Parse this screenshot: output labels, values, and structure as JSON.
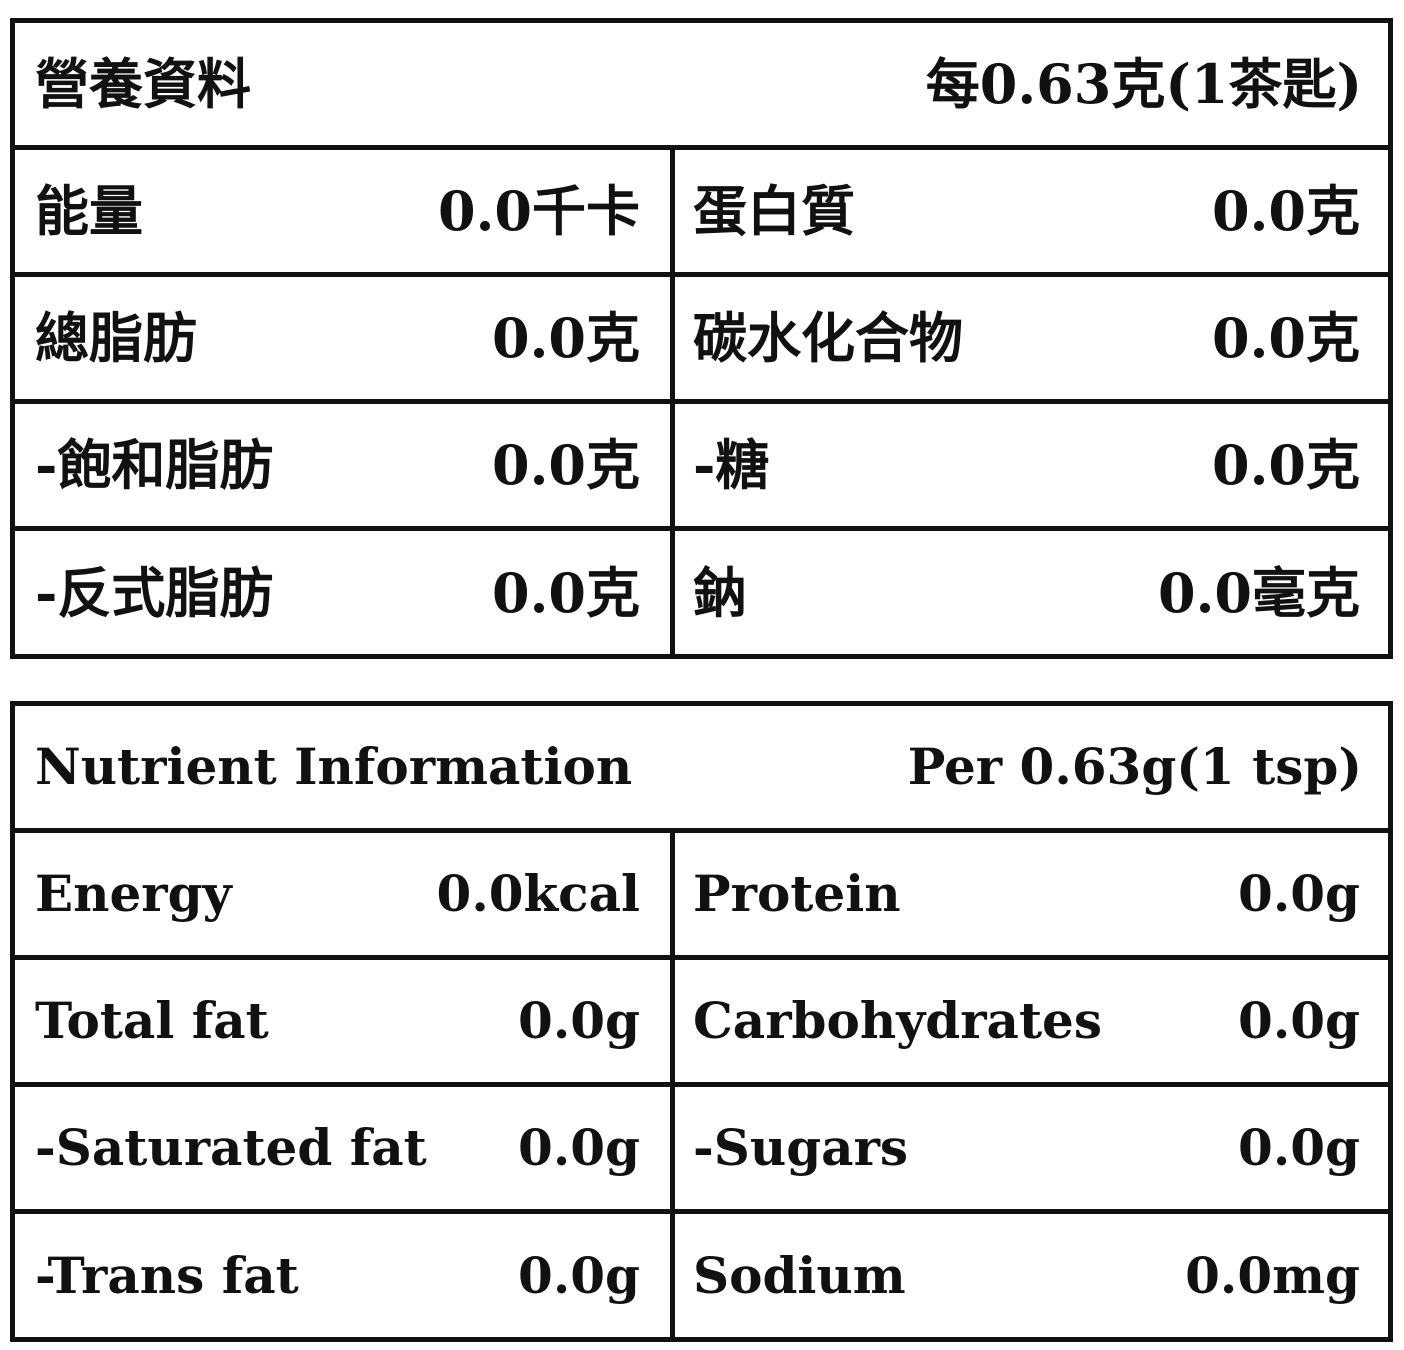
{
  "chinese_table": {
    "title": "營養資料",
    "serving": "每0.63克(1茶匙)",
    "rows": [
      {
        "left_label": "能量",
        "left_value": "0.0千卡",
        "right_label": "蛋白質",
        "right_value": "0.0克"
      },
      {
        "left_label": "總脂肪",
        "left_value": "0.0克",
        "right_label": "碳水化合物",
        "right_value": "0.0克"
      },
      {
        "left_label": "-飽和脂肪",
        "left_value": "0.0克",
        "right_label": "-糖",
        "right_value": "0.0克"
      },
      {
        "left_label": "-反式脂肪",
        "left_value": "0.0克",
        "right_label": "鈉",
        "right_value": "0.0毫克"
      }
    ]
  },
  "english_table": {
    "title": "Nutrient Information",
    "serving": "Per 0.63g(1 tsp)",
    "rows": [
      {
        "left_label": "Energy",
        "left_value": "0.0kcal",
        "right_label": "Protein",
        "right_value": "0.0g"
      },
      {
        "left_label": "Total fat",
        "left_value": "0.0g",
        "right_label": "Carbohydrates",
        "right_value": "0.0g"
      },
      {
        "left_label": "-Saturated fat",
        "left_value": "0.0g",
        "right_label": "-Sugars",
        "right_value": "0.0g"
      },
      {
        "left_label": "-Trans fat",
        "left_value": "0.0g",
        "right_label": "Sodium",
        "right_value": "0.0mg"
      }
    ]
  }
}
